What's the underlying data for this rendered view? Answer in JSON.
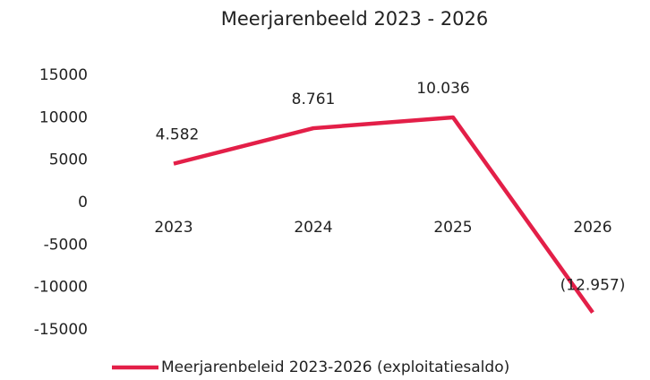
{
  "chart_data": {
    "type": "line",
    "title": "Meerjarenbeeld 2023 - 2026",
    "categories": [
      "2023",
      "2024",
      "2025",
      "2026"
    ],
    "series": [
      {
        "name": "Meerjarenbeleid 2023-2026 (exploitatiesaldo)",
        "color": "#e31f48",
        "values": [
          4582,
          8761,
          10036,
          -12957
        ],
        "value_labels": [
          "4.582",
          "8.761",
          "10.036",
          "(12.957)"
        ]
      }
    ],
    "ylim": [
      -15000,
      15000
    ],
    "yticks": [
      -15000,
      -10000,
      -5000,
      0,
      5000,
      10000,
      15000
    ],
    "grid": false,
    "legend": "bottom"
  }
}
